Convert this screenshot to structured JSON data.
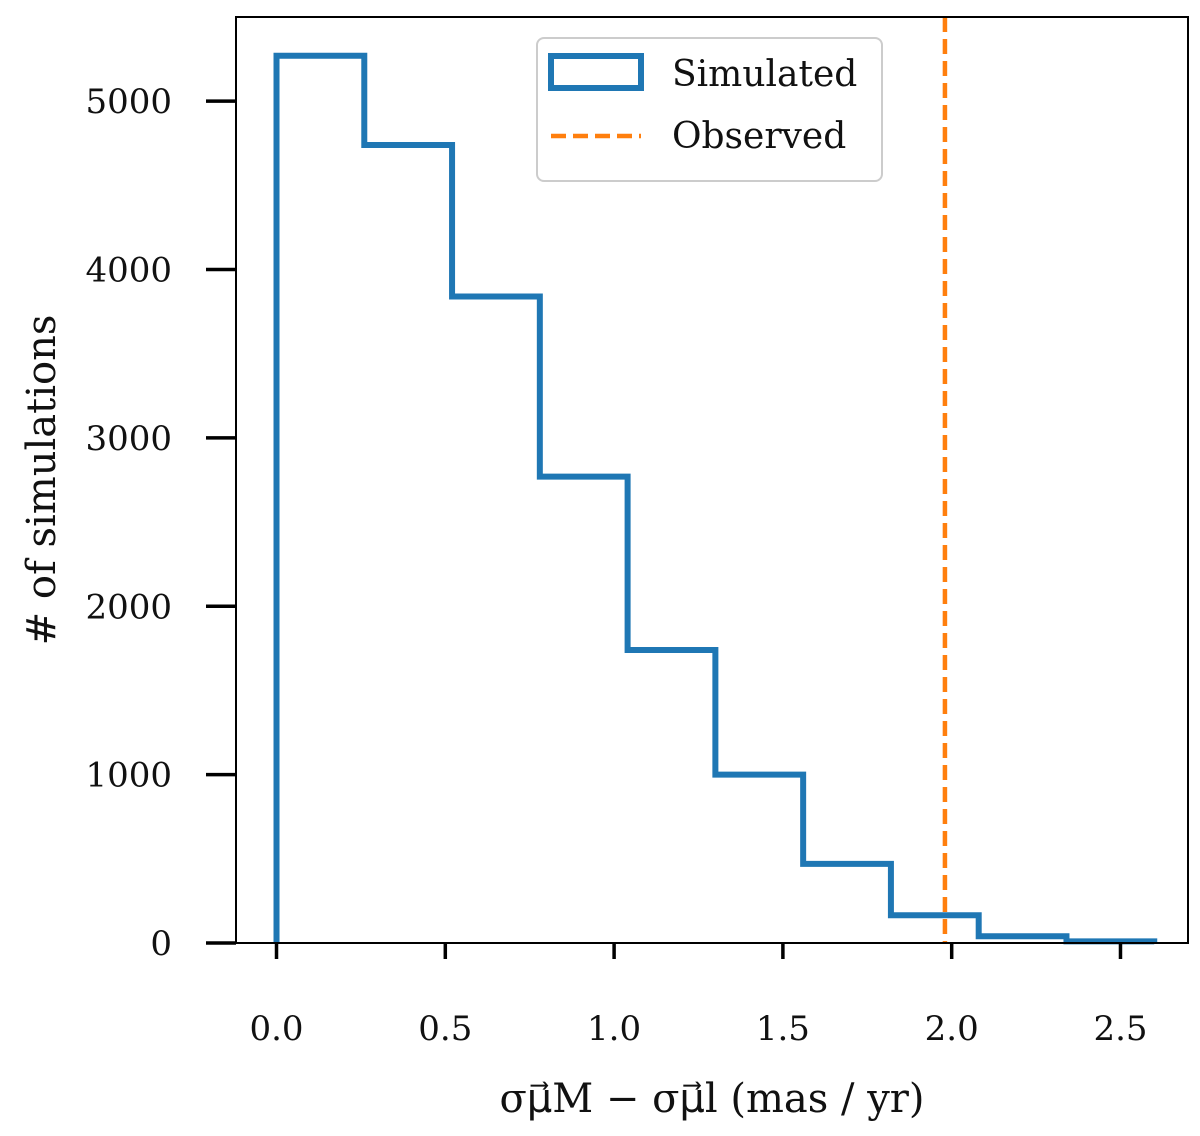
{
  "chart_data": {
    "type": "histogram",
    "title": "",
    "xlabel": "σμ⃗M − σμ⃗l (mas / yr)",
    "ylabel": "# of simulations",
    "xlim": [
      -0.12,
      2.7
    ],
    "ylim": [
      0,
      5500
    ],
    "xticks": [
      0.0,
      0.5,
      1.0,
      1.5,
      2.0,
      2.5
    ],
    "xtick_labels": [
      "0.0",
      "0.5",
      "1.0",
      "1.5",
      "2.0",
      "2.5"
    ],
    "yticks": [
      0,
      1000,
      2000,
      3000,
      4000,
      5000
    ],
    "ytick_labels": [
      "0",
      "1000",
      "2000",
      "3000",
      "4000",
      "5000"
    ],
    "grid": false,
    "series": [
      {
        "name": "Simulated",
        "style": "step",
        "color": "#1f77b4",
        "bin_edges": [
          0.0,
          0.26,
          0.52,
          0.78,
          1.04,
          1.3,
          1.56,
          1.82,
          2.08,
          2.34,
          2.6
        ],
        "counts": [
          5270,
          4740,
          3840,
          2770,
          1740,
          1000,
          470,
          165,
          40,
          10
        ]
      }
    ],
    "reference_lines": [
      {
        "name": "Observed",
        "orientation": "vertical",
        "x": 1.98,
        "color": "#ff7f0e",
        "style": "dashed"
      }
    ],
    "legend": {
      "position": "top-center",
      "entries": [
        "Simulated",
        "Observed"
      ]
    }
  }
}
